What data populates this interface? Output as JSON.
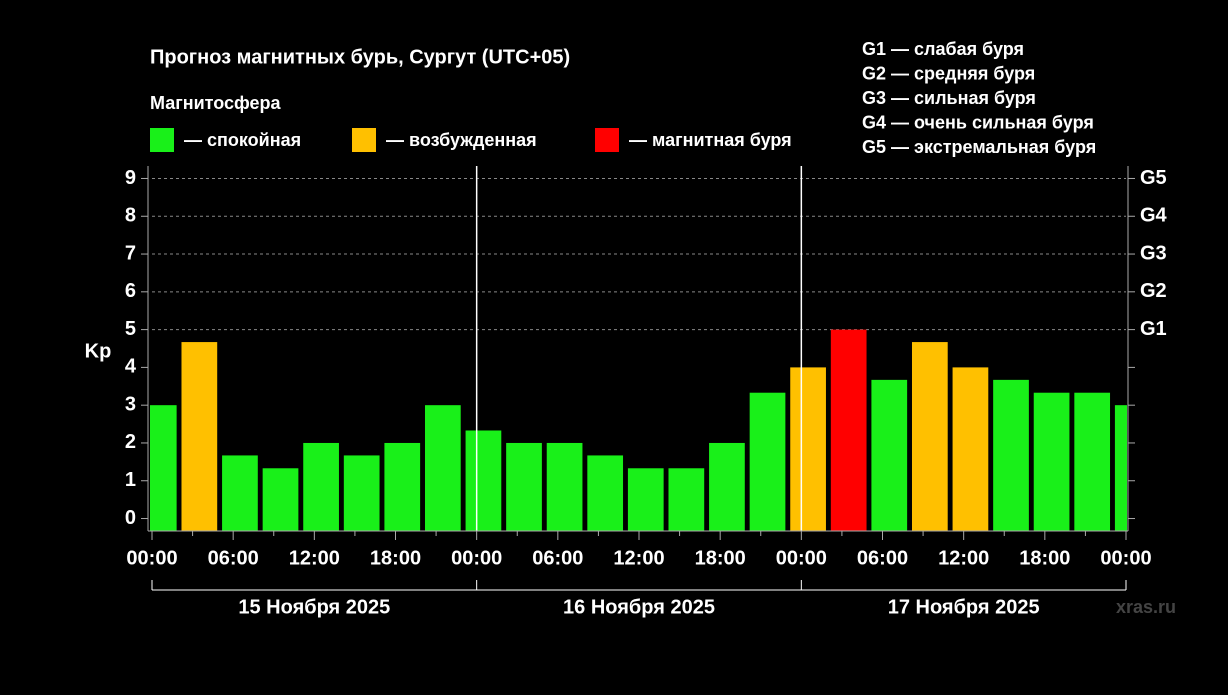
{
  "chart_data": {
    "type": "bar",
    "title": "Прогноз магнитных бурь, Сургут (UTC+05)",
    "subtitle": "Магнитосфера",
    "ylabel": "Kp",
    "legend": [
      {
        "name": "— спокойная",
        "color": "#19f019"
      },
      {
        "name": "— возбужденная",
        "color": "#ffc000"
      },
      {
        "name": "— магнитная буря",
        "color": "#ff0000"
      }
    ],
    "scale_legend": [
      "G1 — слабая буря",
      "G2 — средняя буря",
      "G3 — сильная буря",
      "G4 — очень сильная буря",
      "G5 — экстремальная буря"
    ],
    "x": [
      0.5,
      3.5,
      6.5,
      9.5,
      12.5,
      15.5,
      18.5,
      21.5,
      24.5,
      27.5,
      30.5,
      33.5,
      36.5,
      39.5,
      42.5,
      45.5,
      48.5,
      51.5,
      54.5,
      57.5,
      60.5,
      63.5,
      66.5,
      69.5,
      72.5
    ],
    "values": [
      3,
      4.67,
      1.67,
      1.33,
      2,
      1.67,
      2,
      3,
      2.33,
      2,
      2,
      1.67,
      1.33,
      1.33,
      2,
      3.33,
      4,
      5,
      3.67,
      4.67,
      4,
      3.67,
      3.33,
      3.33,
      3
    ],
    "colors": [
      "#19f019",
      "#ffc000",
      "#19f019",
      "#19f019",
      "#19f019",
      "#19f019",
      "#19f019",
      "#19f019",
      "#19f019",
      "#19f019",
      "#19f019",
      "#19f019",
      "#19f019",
      "#19f019",
      "#19f019",
      "#19f019",
      "#ffc000",
      "#ff0000",
      "#19f019",
      "#ffc000",
      "#ffc000",
      "#19f019",
      "#19f019",
      "#19f019",
      "#19f019"
    ],
    "xlim": [
      0,
      72
    ],
    "xticks": [
      {
        "value": 0,
        "label": "00:00"
      },
      {
        "value": 6,
        "label": "06:00"
      },
      {
        "value": 12,
        "label": "12:00"
      },
      {
        "value": 18,
        "label": "18:00"
      },
      {
        "value": 24,
        "label": "00:00"
      },
      {
        "value": 30,
        "label": "06:00"
      },
      {
        "value": 36,
        "label": "12:00"
      },
      {
        "value": 42,
        "label": "18:00"
      },
      {
        "value": 48,
        "label": "00:00"
      },
      {
        "value": 54,
        "label": "06:00"
      },
      {
        "value": 60,
        "label": "12:00"
      },
      {
        "value": 66,
        "label": "18:00"
      },
      {
        "value": 72,
        "label": "00:00"
      }
    ],
    "days": [
      "15 Ноября 2025",
      "16 Ноября 2025",
      "17 Ноября 2025"
    ],
    "ylim": [
      -0.33,
      9.33
    ],
    "yticks": [
      0,
      1,
      2,
      3,
      4,
      5,
      6,
      7,
      8,
      9
    ],
    "y2ticks": [
      {
        "value": 5,
        "label": "G1"
      },
      {
        "value": 6,
        "label": "G2"
      },
      {
        "value": 7,
        "label": "G3"
      },
      {
        "value": 8,
        "label": "G4"
      },
      {
        "value": 9,
        "label": "G5"
      }
    ],
    "grid": true,
    "watermark": "xras.ru"
  }
}
